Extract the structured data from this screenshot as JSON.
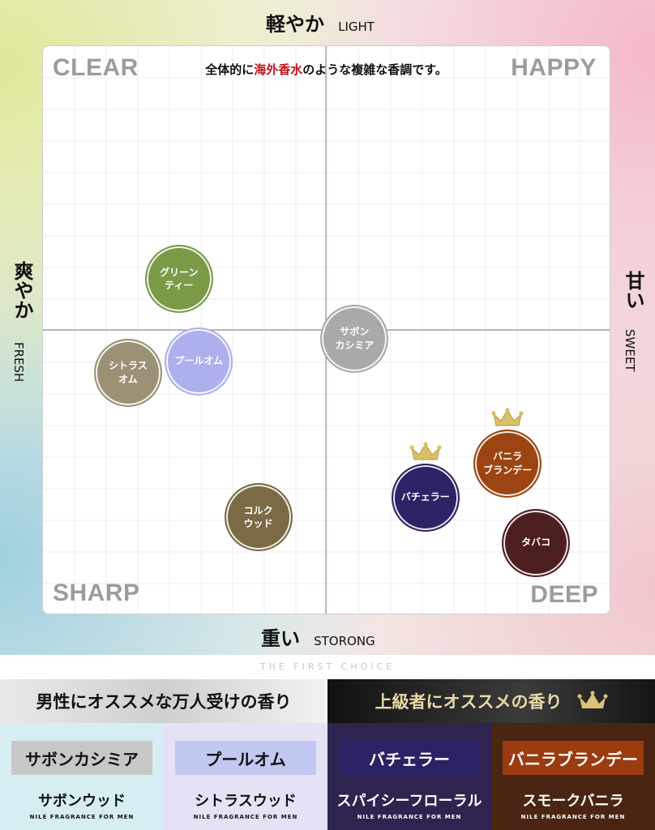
{
  "axes": {
    "top_jp": "軽やか",
    "top_en": "LIGHT",
    "bottom_jp": "重い",
    "bottom_en": "STORONG",
    "left_jp": "爽やか",
    "left_en": "FRESH",
    "right_jp": "甘い",
    "right_en": "SWEET"
  },
  "quadrants": {
    "top_left": "CLEAR",
    "top_right": "HAPPY",
    "bottom_left": "SHARP",
    "bottom_right": "DEEP"
  },
  "subtitle": {
    "before": "全体的に",
    "highlight": "海外香水",
    "after": "のような複雑な香調です。"
  },
  "chart_data": {
    "type": "scatter",
    "title": "全体的に海外香水のような複雑な香調です。",
    "x_axis": {
      "negative": "爽やか FRESH",
      "positive": "甘い SWEET",
      "range": [
        -1,
        1
      ]
    },
    "y_axis": {
      "negative": "重い STORONG",
      "positive": "軽やか LIGHT",
      "range": [
        -1,
        1
      ]
    },
    "points": [
      {
        "label": "グリーン\nティー",
        "x": -0.52,
        "y": 0.18,
        "color": "#7a9a48",
        "crown": false
      },
      {
        "label": "シトラス\nオム",
        "x": -0.7,
        "y": -0.15,
        "color": "#9b9275",
        "crown": false
      },
      {
        "label": "プールオム",
        "x": -0.45,
        "y": -0.11,
        "color": "#aeb0ee",
        "crown": false
      },
      {
        "label": "サボン\nカシミア",
        "x": 0.1,
        "y": -0.03,
        "color": "#a9a9a9",
        "crown": false
      },
      {
        "label": "バニラ\nブランデー",
        "x": 0.64,
        "y": -0.47,
        "color": "#9c4512",
        "crown": true
      },
      {
        "label": "バチェラー",
        "x": 0.35,
        "y": -0.59,
        "color": "#2c2466",
        "crown": true
      },
      {
        "label": "コルク\nウッド",
        "x": -0.24,
        "y": -0.66,
        "color": "#7a6a45",
        "crown": false
      },
      {
        "label": "タバコ",
        "x": 0.74,
        "y": -0.75,
        "color": "#4e1f21",
        "crown": false
      }
    ]
  },
  "footer": {
    "tagline": "THE FIRST CHOICE",
    "left_banner": "男性にオススメな万人受けの香り",
    "right_banner": "上級者にオススメの香り",
    "brand": "NILE FRAGRANCE FOR MEN",
    "tiles": [
      {
        "name": "サボンカシミア",
        "scent": "サボンウッド",
        "bg": "#d6edf2",
        "chip": "#c7c7c7",
        "text": "#111111"
      },
      {
        "name": "プールオム",
        "scent": "シトラスウッド",
        "bg": "#e6e2f6",
        "chip": "#c2c8f2",
        "text": "#111111"
      },
      {
        "name": "バチェラー",
        "scent": "スパイシーフローラル",
        "bg": "#2f2450",
        "chip": "#2b2266",
        "text": "#ffffff"
      },
      {
        "name": "バニラブランデー",
        "scent": "スモークバニラ",
        "bg": "#4a2512",
        "chip": "#9a3c10",
        "text": "#ffffff"
      }
    ]
  }
}
